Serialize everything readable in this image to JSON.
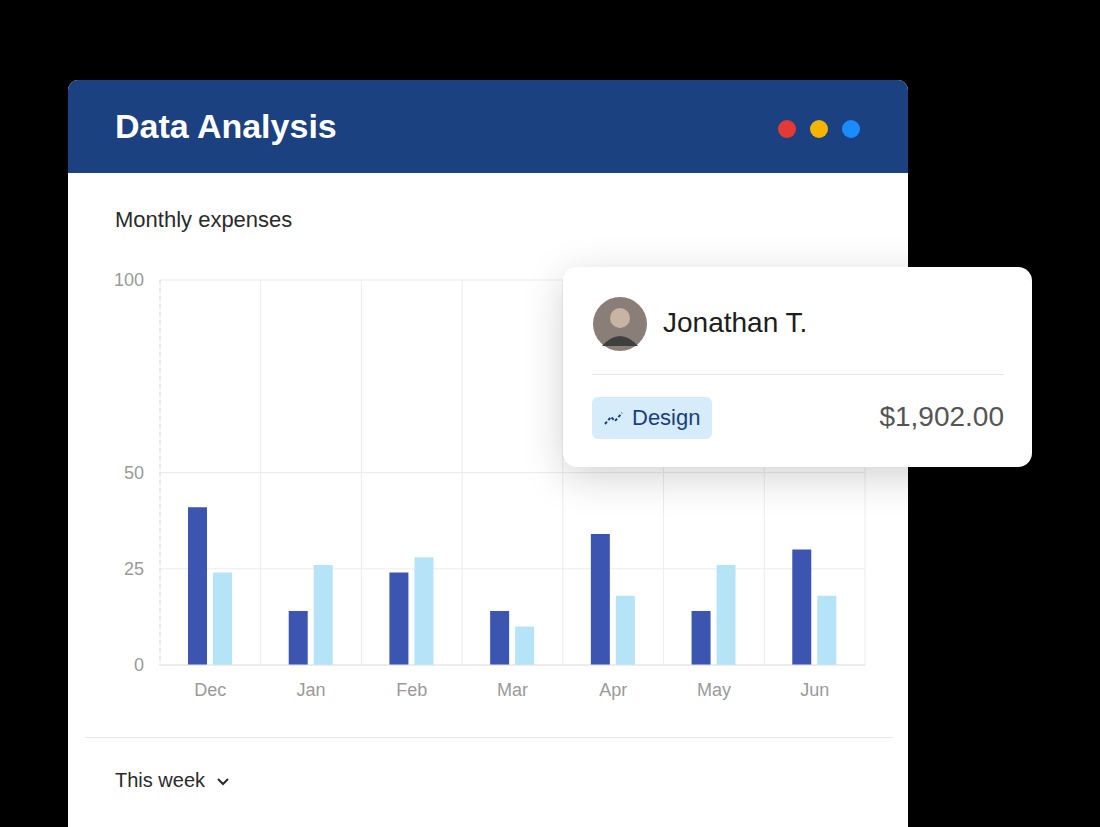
{
  "header": {
    "title": "Data Analysis"
  },
  "chart_data": {
    "type": "bar",
    "title": "Monthly expenses",
    "categories": [
      "Dec",
      "Jan",
      "Feb",
      "Mar",
      "Apr",
      "May",
      "Jun"
    ],
    "series": [
      {
        "color": "#3c55b1",
        "values": [
          41,
          14,
          24,
          14,
          34,
          14,
          30
        ]
      },
      {
        "color": "#b5e4f8",
        "values": [
          24,
          26,
          28,
          10,
          18,
          26,
          18
        ]
      }
    ],
    "ylim": [
      0,
      100
    ],
    "yticks": [
      0,
      25,
      50,
      100
    ],
    "grid": true
  },
  "card": {
    "name": "Jonathan T.",
    "tag": "Design",
    "amount": "$1,902.00"
  },
  "footer": {
    "period": "This week"
  }
}
